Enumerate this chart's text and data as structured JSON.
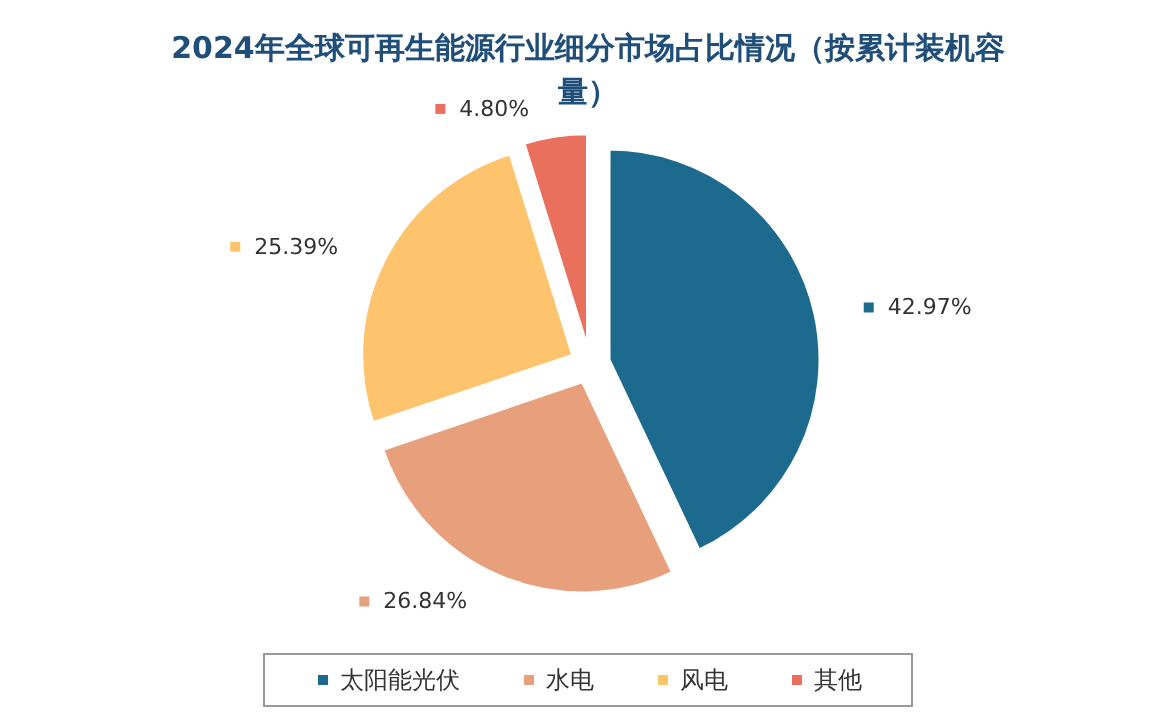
{
  "chart_data": {
    "type": "pie",
    "title": "2024年全球可再生能源行业细分市场占比情况（按累计装机容量）",
    "categories": [
      "太阳能光伏",
      "水电",
      "风电",
      "其他"
    ],
    "values": [
      42.97,
      26.84,
      25.39,
      4.8
    ],
    "value_labels": [
      "42.97%",
      "26.84%",
      "25.39%",
      "4.80%"
    ],
    "colors": [
      "#1d6a8f",
      "#e8a07c",
      "#fdc36d",
      "#e9705c"
    ],
    "legend": "bottom"
  }
}
